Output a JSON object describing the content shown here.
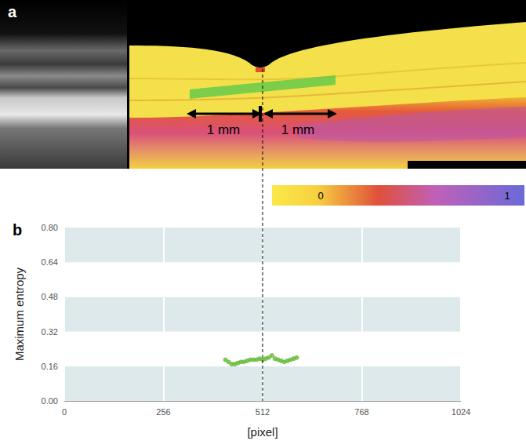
{
  "panel_a": {
    "letter": "a",
    "scale_labels": [
      "1 mm",
      "1 mm"
    ],
    "colorbar": {
      "range": [
        0,
        1
      ],
      "ticks": [
        0,
        1
      ]
    }
  },
  "panel_b": {
    "letter": "b"
  },
  "chart_data": {
    "type": "scatter",
    "x_label": "[pixel]",
    "y_label": "Maximum entropy",
    "x": [
      416,
      424,
      432,
      440,
      448,
      456,
      464,
      472,
      480,
      488,
      496,
      504,
      512,
      520,
      528,
      536,
      544,
      552,
      560,
      568,
      576,
      584,
      592,
      600
    ],
    "values": [
      0.19,
      0.18,
      0.17,
      0.17,
      0.175,
      0.18,
      0.18,
      0.185,
      0.19,
      0.19,
      0.19,
      0.195,
      0.19,
      0.195,
      0.2,
      0.21,
      0.195,
      0.19,
      0.185,
      0.18,
      0.185,
      0.19,
      0.195,
      0.2
    ],
    "color": "#5cb82e",
    "marker": "circle",
    "xlim": [
      0,
      1024
    ],
    "ylim": [
      0,
      0.8
    ],
    "xticks": [
      0,
      256,
      512,
      768,
      1024
    ],
    "yticks": [
      {
        "value": 0,
        "label": "0.00"
      },
      0.16,
      0.32,
      0.48,
      0.64,
      {
        "value": 0.8,
        "label": "0.80"
      }
    ],
    "grid": true
  }
}
